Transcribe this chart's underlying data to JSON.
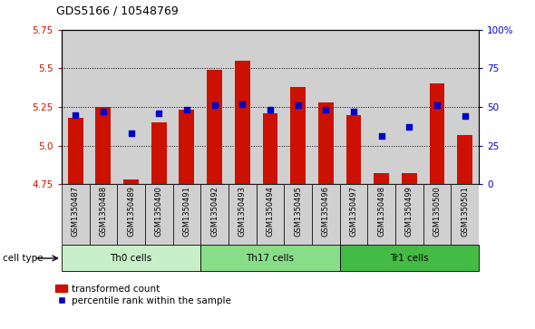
{
  "title": "GDS5166 / 10548769",
  "samples": [
    "GSM1350487",
    "GSM1350488",
    "GSM1350489",
    "GSM1350490",
    "GSM1350491",
    "GSM1350492",
    "GSM1350493",
    "GSM1350494",
    "GSM1350495",
    "GSM1350496",
    "GSM1350497",
    "GSM1350498",
    "GSM1350499",
    "GSM1350500",
    "GSM1350501"
  ],
  "bar_values": [
    5.18,
    5.25,
    4.78,
    5.15,
    5.23,
    5.49,
    5.55,
    5.21,
    5.38,
    5.28,
    5.2,
    4.82,
    4.82,
    5.4,
    5.07
  ],
  "dot_percentile": [
    45,
    47,
    33,
    46,
    48,
    51,
    52,
    48,
    51,
    48,
    47,
    31,
    37,
    51,
    44
  ],
  "bar_color": "#cc1100",
  "dot_color": "#0000cc",
  "y_min": 4.75,
  "y_max": 5.75,
  "y_ticks": [
    4.75,
    5.0,
    5.25,
    5.5,
    5.75
  ],
  "y_right_ticks": [
    0,
    25,
    50,
    75,
    100
  ],
  "y_right_labels": [
    "0",
    "25",
    "50",
    "75",
    "100%"
  ],
  "cell_groups": [
    {
      "label": "Th0 cells",
      "start": 0,
      "end": 5,
      "color": "#c8f0c8"
    },
    {
      "label": "Th17 cells",
      "start": 5,
      "end": 10,
      "color": "#88dd88"
    },
    {
      "label": "Tr1 cells",
      "start": 10,
      "end": 15,
      "color": "#44bb44"
    }
  ],
  "legend_bar_label": "transformed count",
  "legend_dot_label": "percentile rank within the sample",
  "cell_type_label": "cell type",
  "bar_bottom": 4.75,
  "col_bg_color": "#d0d0d0",
  "grid_yticks": [
    5.0,
    5.25,
    5.5
  ]
}
